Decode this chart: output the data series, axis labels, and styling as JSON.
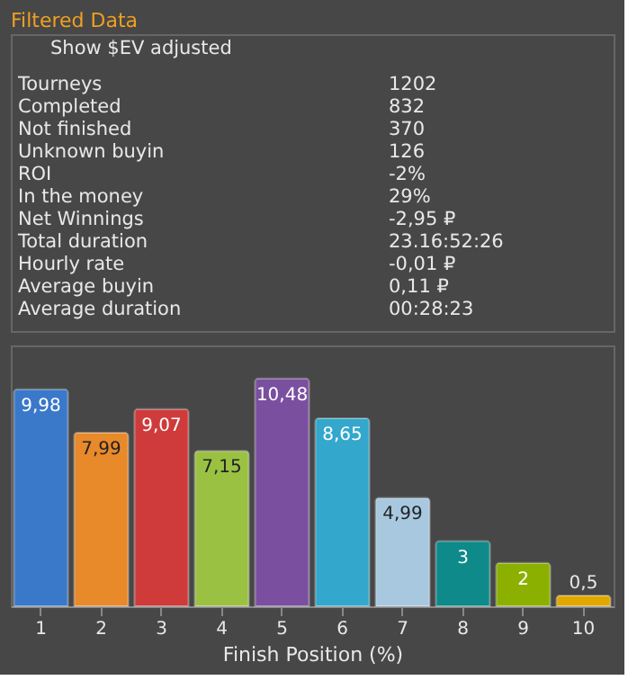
{
  "chart_data": {
    "type": "bar",
    "title": "Filtered Data",
    "xlabel": "Finish Position (%)",
    "categories": [
      "1",
      "2",
      "3",
      "4",
      "5",
      "6",
      "7",
      "8",
      "9",
      "10"
    ],
    "values": [
      9.98,
      7.99,
      9.07,
      7.15,
      10.48,
      8.65,
      4.99,
      3,
      2,
      0.5
    ],
    "value_labels": [
      "9,98",
      "7,99",
      "9,07",
      "7,15",
      "10,48",
      "8,65",
      "4,99",
      "3",
      "2",
      "0,5"
    ],
    "colors": [
      "#3a78c9",
      "#e8892a",
      "#cf3b3b",
      "#9bc143",
      "#7a4fa0",
      "#33a8cc",
      "#a8c8e0",
      "#0e8a8a",
      "#8cb000",
      "#e0a800"
    ],
    "ylim": [
      0,
      12
    ],
    "tick_labels": "x",
    "annotations": [
      "Show $EV adjusted",
      "Tourneys",
      "1202",
      "Completed",
      "832",
      "Not finished",
      "370",
      "Unknown buyin",
      "126",
      "ROI",
      "-2%",
      "In the money",
      "29%",
      "Net Winnings",
      "-2,95 ₽",
      "Total duration",
      "23.16:52:26",
      "Hourly rate",
      "-0,01 ₽",
      "Average buyin",
      "0,11 ₽",
      "Average duration",
      "00:28:23"
    ]
  }
}
